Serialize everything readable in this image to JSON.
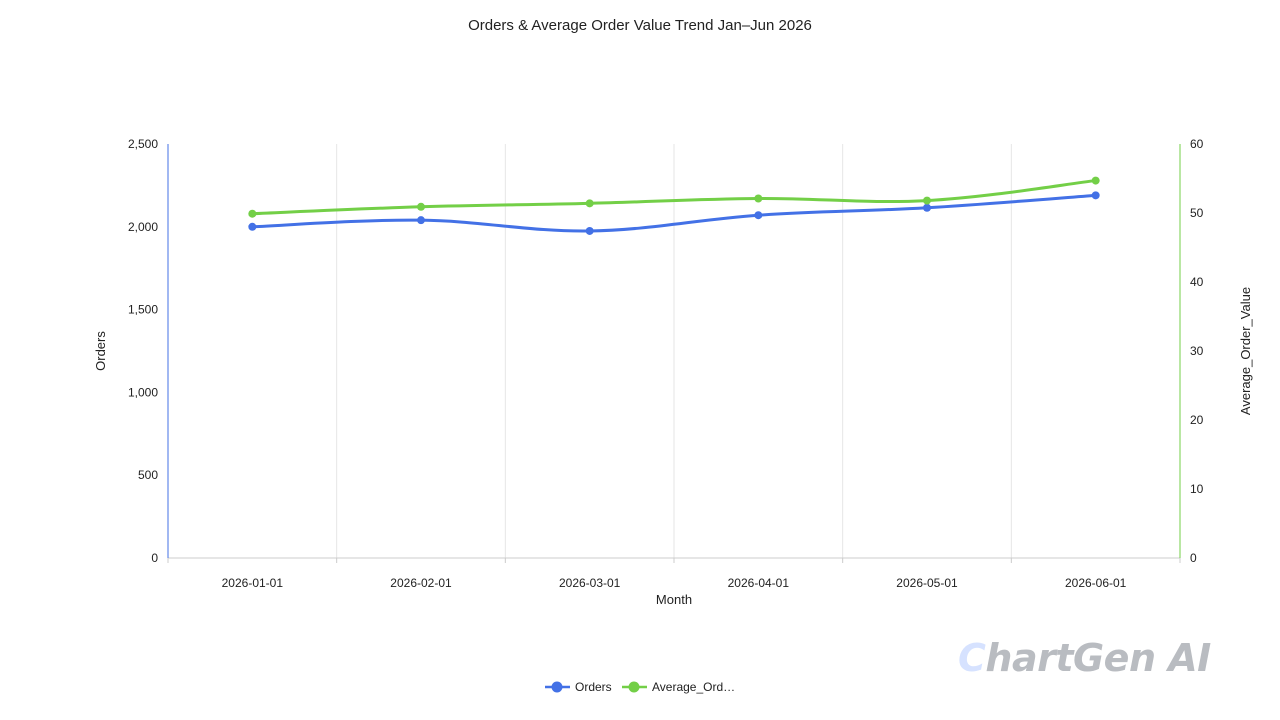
{
  "chart_data": {
    "type": "line",
    "title": "Orders & Average Order Value Trend Jan–Jun 2026",
    "xlabel": "Month",
    "ylabel_left": "Orders",
    "ylabel_right": "Average_Order_Value",
    "categories": [
      "2026-01-01",
      "2026-02-01",
      "2026-03-01",
      "2026-04-01",
      "2026-05-01",
      "2026-06-01"
    ],
    "y_left": {
      "range": [
        0,
        2500
      ],
      "ticks": [
        0,
        500,
        1000,
        1500,
        2000,
        2500
      ],
      "tick_labels": [
        "0",
        "500",
        "1,000",
        "1,500",
        "2,000",
        "2,500"
      ]
    },
    "y_right": {
      "range": [
        0,
        60
      ],
      "ticks": [
        0,
        10,
        20,
        30,
        40,
        50,
        60
      ],
      "tick_labels": [
        "0",
        "10",
        "20",
        "30",
        "40",
        "50",
        "60"
      ]
    },
    "series": [
      {
        "name": "Orders",
        "legend_label": "Orders",
        "axis": "left",
        "color": "#4371e6",
        "values": [
          2000,
          2040,
          1975,
          2070,
          2115,
          2190
        ]
      },
      {
        "name": "Average_Order_Value",
        "legend_label": "Average_Ord…",
        "axis": "right",
        "color": "#73cf47",
        "values": [
          49.9,
          50.9,
          51.4,
          52.1,
          51.8,
          54.7
        ]
      }
    ],
    "grid": "vertical",
    "legend": "bottom-center",
    "smooth": true
  },
  "watermark": {
    "first_letter": "C",
    "rest": "hartGen AI"
  },
  "colors": {
    "left_axis": "#4371e6",
    "right_axis": "#73cf47",
    "grid": "#e6e6e6",
    "baseline": "#cccccc"
  }
}
